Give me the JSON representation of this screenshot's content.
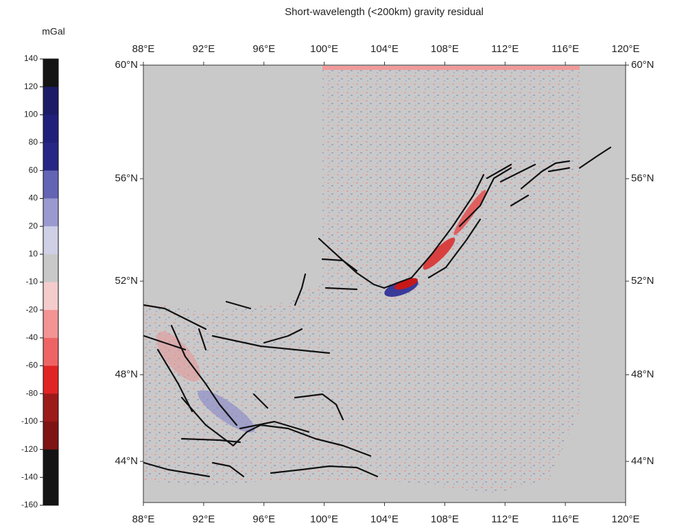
{
  "title": "Short-wavelength (<200km) gravity residual",
  "colorbar": {
    "label": "mGal",
    "ticks": [
      140,
      120,
      100,
      80,
      60,
      40,
      20,
      10,
      -10,
      -20,
      -40,
      -60,
      -80,
      -100,
      -120,
      -140,
      -160
    ],
    "colors": [
      "#141414",
      "#1c1c66",
      "#20207a",
      "#262684",
      "#6464b4",
      "#9a9ad0",
      "#cfcfe6",
      "#c8c8c8",
      "#f4cccc",
      "#f29494",
      "#ee6464",
      "#e02424",
      "#9c1a1a",
      "#7e1414",
      "#141414",
      "#141414"
    ]
  },
  "map": {
    "projection": "mercator",
    "xlim": [
      88,
      120
    ],
    "ylim": [
      42,
      60
    ],
    "xticks": [
      {
        "value": 88,
        "label": "88°E"
      },
      {
        "value": 92,
        "label": "92°E"
      },
      {
        "value": 96,
        "label": "96°E"
      },
      {
        "value": 100,
        "label": "100°E"
      },
      {
        "value": 104,
        "label": "104°E"
      },
      {
        "value": 108,
        "label": "108°E"
      },
      {
        "value": 112,
        "label": "112°E"
      },
      {
        "value": 116,
        "label": "116°E"
      },
      {
        "value": 120,
        "label": "120°E"
      }
    ],
    "yticks": [
      {
        "value": 44,
        "label": "44°N"
      },
      {
        "value": 48,
        "label": "48°N"
      },
      {
        "value": 52,
        "label": "52°N"
      },
      {
        "value": 56,
        "label": "56°N"
      },
      {
        "value": 60,
        "label": "60°N"
      }
    ]
  }
}
